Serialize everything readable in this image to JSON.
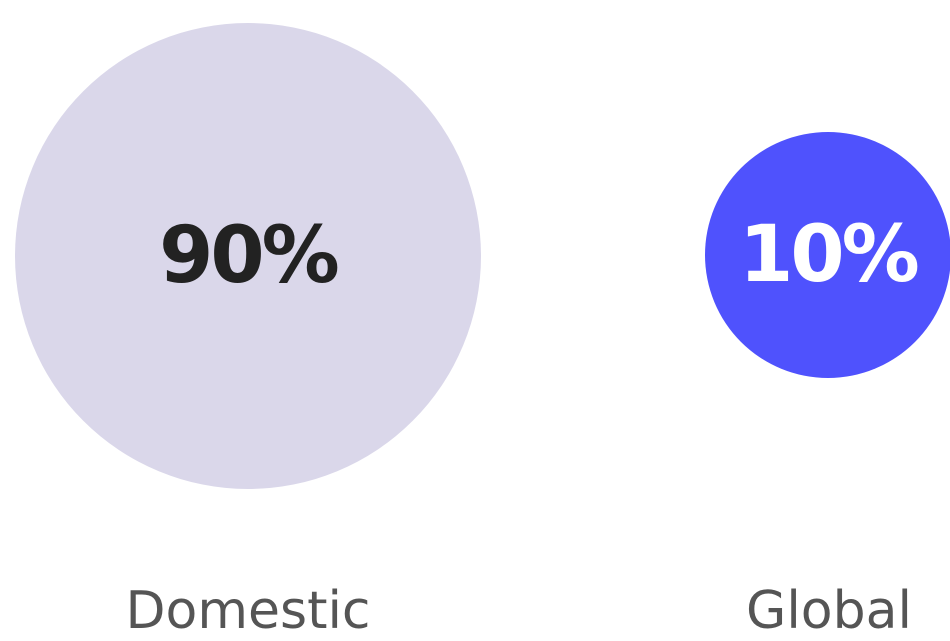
{
  "chart_data": {
    "type": "bubble",
    "categories": [
      "Domestic",
      "Global"
    ],
    "values": [
      90,
      10
    ],
    "value_labels": [
      "90%",
      "10%"
    ],
    "unit": "%",
    "colors": [
      "#dad7ea",
      "#4f52fd"
    ],
    "label_colors": [
      "#222222",
      "#ffffff"
    ],
    "category_label_color": "#555555"
  }
}
